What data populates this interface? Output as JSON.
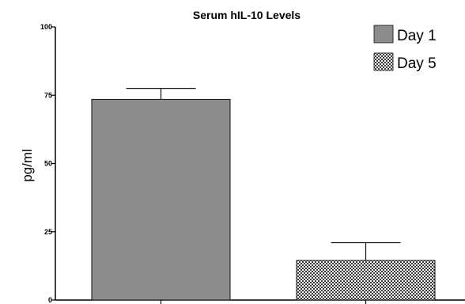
{
  "chart_data": {
    "type": "bar",
    "title": "Serum hIL-10 Levels",
    "xlabel": "",
    "ylabel": "pg/ml",
    "ylim": [
      0,
      100
    ],
    "yticks": [
      0,
      25,
      50,
      75,
      100
    ],
    "grid": false,
    "legend_position": "top-right",
    "series": [
      {
        "name": "Day 1",
        "value": 73.5,
        "error": 4.0,
        "color": "#8c8c8c",
        "fill": "solid"
      },
      {
        "name": "Day 5",
        "value": 14.5,
        "error": 6.5,
        "color": "#555555",
        "fill": "checkered"
      }
    ]
  }
}
